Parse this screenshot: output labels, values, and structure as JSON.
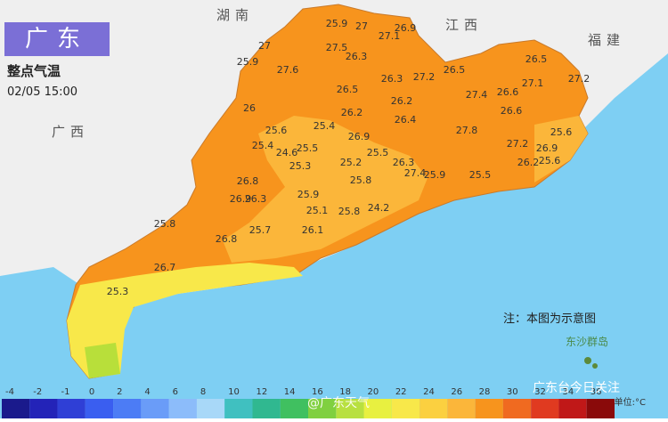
{
  "header": {
    "title": "广东",
    "subtitle": "整点气温",
    "time": "02/05 15:00"
  },
  "neighbors": [
    "湖南",
    "江西",
    "福建",
    "广西"
  ],
  "note": "注：本图为示意图",
  "islands": "东沙群岛",
  "temperatures": [
    "25.9",
    "27",
    "26.9",
    "27.1",
    "27",
    "27.5",
    "26.3",
    "25.9",
    "27.6",
    "26.3",
    "27.2",
    "26.5",
    "26.5",
    "27.1",
    "27.2",
    "26.5",
    "26.6",
    "27.4",
    "26.2",
    "26",
    "26.2",
    "26.6",
    "25.4",
    "25.6",
    "26.4",
    "27.8",
    "26.9",
    "25.6",
    "25.4",
    "27.2",
    "26.9",
    "24.6",
    "25.5",
    "25.5",
    "25.2",
    "26.3",
    "26.2",
    "25.6",
    "25.3",
    "27.4",
    "25.9",
    "25.5",
    "26.8",
    "25.8",
    "26.9",
    "26.3",
    "25.9",
    "25.1",
    "25.8",
    "24.2",
    "25.8",
    "25.7",
    "26.1",
    "26.8",
    "26.7",
    "25.3"
  ],
  "legend": {
    "unit": "单位:°C",
    "labels": [
      "-4",
      "-2",
      "-1",
      "0",
      "2",
      "4",
      "6",
      "8",
      "10",
      "12",
      "14",
      "16",
      "18",
      "20",
      "22",
      "24",
      "26",
      "28",
      "30",
      "32",
      "34",
      "36"
    ]
  },
  "watermark": {
    "weibo": "@广东天气",
    "wechat": "广东台今日关注"
  }
}
